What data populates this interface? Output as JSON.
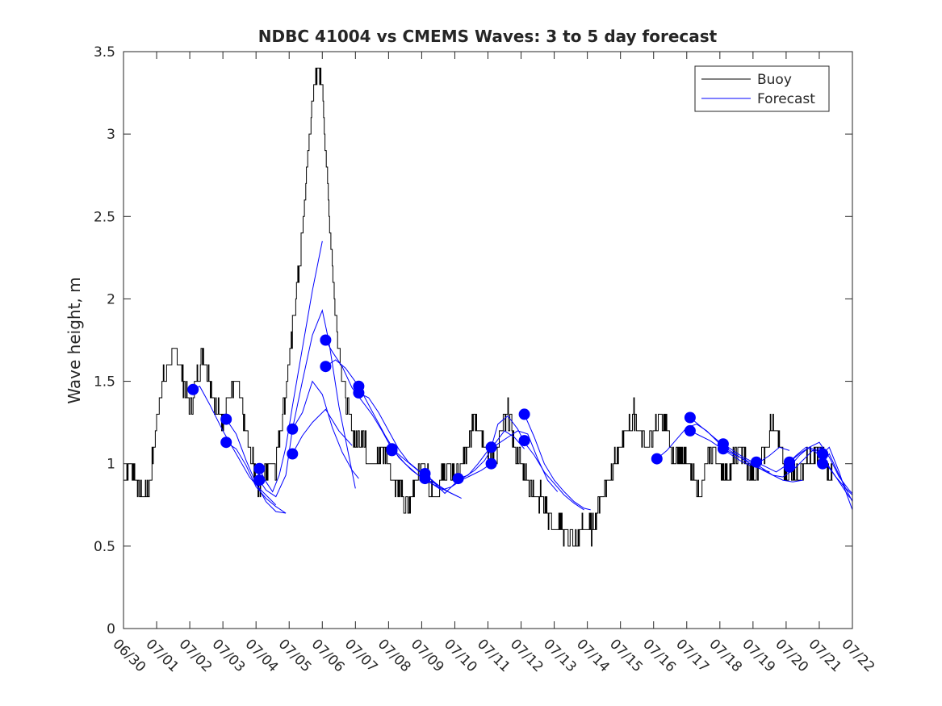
{
  "chart_data": {
    "type": "line",
    "title": "NDBC 41004 vs CMEMS Waves: 3 to 5 day forecast",
    "xlabel": "",
    "ylabel": "Wave height, m",
    "xlim": [
      "06/30",
      "07/22"
    ],
    "ylim": [
      0,
      3.5
    ],
    "x_ticks": [
      "06/30",
      "07/01",
      "07/02",
      "07/03",
      "07/04",
      "07/05",
      "07/06",
      "07/07",
      "07/08",
      "07/09",
      "07/10",
      "07/11",
      "07/12",
      "07/13",
      "07/14",
      "07/15",
      "07/16",
      "07/17",
      "07/18",
      "07/19",
      "07/20",
      "07/21",
      "07/22"
    ],
    "y_ticks": [
      "0",
      "0.5",
      "1",
      "1.5",
      "2",
      "2.5",
      "3",
      "3.5"
    ],
    "legend": {
      "position": "top-right",
      "entries": [
        "Buoy",
        "Forecast"
      ]
    },
    "colors": {
      "buoy": "#000000",
      "forecast": "#0000ff",
      "axis": "#262626"
    },
    "grid": false,
    "series": [
      {
        "name": "Buoy",
        "color": "#000000",
        "x": [
          0.0,
          0.2,
          0.4,
          0.6,
          0.8,
          1.0,
          1.2,
          1.4,
          1.6,
          1.8,
          2.0,
          2.2,
          2.4,
          2.6,
          2.8,
          3.0,
          3.2,
          3.4,
          3.6,
          3.8,
          4.0,
          4.2,
          4.4,
          4.6,
          4.8,
          5.0,
          5.2,
          5.4,
          5.6,
          5.8,
          6.0,
          6.2,
          6.4,
          6.6,
          6.8,
          7.0,
          7.2,
          7.4,
          7.6,
          7.8,
          8.0,
          8.2,
          8.4,
          8.6,
          8.8,
          9.0,
          9.2,
          9.4,
          9.6,
          9.8,
          10.0,
          10.2,
          10.4,
          10.6,
          10.8,
          11.0,
          11.2,
          11.4,
          11.6,
          11.8,
          12.0,
          12.2,
          12.4,
          12.6,
          12.8,
          13.0,
          13.2,
          13.4,
          13.6,
          13.8,
          14.0,
          14.2,
          14.4,
          14.6,
          14.8,
          15.0,
          15.2,
          15.4,
          15.6,
          15.8,
          16.0,
          16.2,
          16.4,
          16.6,
          16.8,
          17.0,
          17.2,
          17.4,
          17.6,
          17.8,
          18.0,
          18.2,
          18.4,
          18.6,
          18.8,
          19.0,
          19.2,
          19.4,
          19.6,
          19.8,
          20.0,
          20.2,
          20.4,
          20.6,
          20.8,
          21.0,
          21.2,
          21.4
        ],
        "values": [
          0.9,
          1.0,
          0.9,
          0.8,
          0.9,
          1.3,
          1.5,
          1.6,
          1.7,
          1.5,
          1.3,
          1.5,
          1.7,
          1.5,
          1.3,
          1.3,
          1.4,
          1.5,
          1.3,
          1.1,
          0.9,
          0.9,
          1.0,
          1.0,
          1.3,
          1.6,
          2.0,
          2.4,
          3.0,
          3.4,
          3.3,
          2.5,
          1.9,
          1.5,
          1.3,
          1.1,
          1.2,
          1.0,
          1.0,
          1.1,
          1.0,
          0.9,
          0.8,
          0.7,
          0.9,
          1.0,
          0.9,
          0.8,
          0.9,
          1.0,
          0.9,
          1.0,
          1.1,
          1.3,
          1.2,
          1.1,
          1.0,
          1.2,
          1.3,
          1.1,
          1.0,
          0.9,
          0.8,
          0.8,
          0.7,
          0.6,
          0.6,
          0.6,
          0.5,
          0.6,
          0.6,
          0.6,
          0.8,
          0.9,
          1.0,
          1.1,
          1.2,
          1.3,
          1.2,
          1.1,
          1.2,
          1.3,
          1.2,
          1.0,
          1.1,
          1.0,
          0.9,
          0.8,
          1.0,
          1.1,
          1.0,
          0.9,
          1.0,
          1.1,
          1.0,
          0.9,
          1.0,
          1.1,
          1.3,
          1.1,
          0.9,
          1.0,
          0.9,
          1.0,
          1.0,
          1.1,
          1.0,
          0.9
        ]
      },
      {
        "name": "Forecast",
        "color": "#0000ff",
        "lines": [
          {
            "x": [
              2.1,
              2.3,
              2.6,
              3.0,
              3.4,
              3.8,
              4.1,
              4.4,
              4.6
            ],
            "values": [
              1.45,
              1.47,
              1.36,
              1.2,
              1.06,
              0.92,
              0.85,
              0.79,
              0.75
            ]
          },
          {
            "x": [
              3.1,
              3.4,
              3.7,
              4.0,
              4.3,
              4.6,
              4.9
            ],
            "values": [
              1.27,
              1.18,
              1.02,
              0.88,
              0.77,
              0.71,
              0.7
            ]
          },
          {
            "x": [
              3.1,
              3.4,
              3.7,
              4.0,
              4.3,
              4.6,
              4.9
            ],
            "values": [
              1.13,
              1.09,
              0.99,
              0.86,
              0.79,
              0.74,
              0.7
            ]
          },
          {
            "x": [
              4.1,
              4.3,
              4.5,
              4.7,
              4.9,
              5.1,
              5.4,
              5.7,
              6.0
            ],
            "values": [
              0.97,
              0.89,
              0.83,
              0.93,
              1.1,
              1.35,
              1.7,
              2.05,
              2.35
            ]
          },
          {
            "x": [
              4.1,
              4.3,
              4.6,
              4.9,
              5.1,
              5.4,
              5.7,
              6.0,
              6.2,
              6.5,
              6.8,
              7.0
            ],
            "values": [
              0.9,
              0.84,
              0.8,
              0.93,
              1.21,
              1.5,
              1.78,
              1.93,
              1.74,
              1.35,
              1.05,
              0.85
            ]
          },
          {
            "x": [
              5.1,
              5.4,
              5.7,
              6.0,
              6.3,
              6.6,
              6.9,
              7.1
            ],
            "values": [
              1.21,
              1.31,
              1.5,
              1.42,
              1.22,
              1.07,
              0.96,
              0.91
            ]
          },
          {
            "x": [
              5.1,
              5.4,
              5.7,
              6.1,
              6.5,
              6.9
            ],
            "values": [
              1.06,
              1.17,
              1.25,
              1.33,
              1.2,
              1.11
            ]
          },
          {
            "x": [
              6.1,
              6.3,
              6.6,
              6.9,
              7.2,
              7.5,
              7.8,
              8.1,
              8.5,
              8.9,
              9.2,
              9.5,
              9.8
            ],
            "values": [
              1.75,
              1.68,
              1.59,
              1.46,
              1.38,
              1.3,
              1.2,
              1.09,
              1.0,
              0.93,
              0.9,
              0.87,
              0.83
            ]
          },
          {
            "x": [
              6.1,
              6.4,
              6.7,
              7.1,
              7.5,
              7.9,
              8.3,
              8.7,
              9.1,
              9.5,
              9.9,
              10.2
            ],
            "values": [
              1.59,
              1.63,
              1.58,
              1.47,
              1.32,
              1.17,
              1.04,
              0.96,
              0.9,
              0.86,
              0.82,
              0.79
            ]
          },
          {
            "x": [
              7.1,
              7.4,
              7.7,
              8.0,
              8.3,
              8.6,
              8.9,
              9.2,
              9.5,
              9.8,
              10.1
            ],
            "values": [
              1.43,
              1.4,
              1.31,
              1.2,
              1.09,
              1.01,
              0.96,
              0.92,
              0.87,
              0.83,
              0.8
            ]
          },
          {
            "x": [
              8.1,
              8.4,
              8.7,
              9.0,
              9.3,
              9.6,
              9.9,
              10.2,
              10.5,
              10.8,
              11.1
            ],
            "values": [
              1.09,
              1.04,
              0.99,
              0.94,
              0.88,
              0.84,
              0.86,
              0.9,
              0.93,
              0.96,
              1.0
            ]
          },
          {
            "x": [
              9.1,
              9.4,
              9.7,
              10.0,
              10.3,
              10.6,
              10.9,
              11.2,
              11.5,
              11.8,
              12.1
            ],
            "values": [
              0.94,
              0.88,
              0.82,
              0.88,
              0.92,
              0.96,
              1.02,
              1.12,
              1.2,
              1.16,
              1.09
            ]
          },
          {
            "x": [
              10.1,
              10.4,
              10.7,
              11.0,
              11.3,
              11.6,
              11.9,
              12.2,
              12.5,
              12.8,
              13.1
            ],
            "values": [
              0.91,
              0.93,
              1.0,
              1.08,
              1.12,
              1.16,
              1.2,
              1.18,
              1.03,
              0.9,
              0.83
            ]
          },
          {
            "x": [
              11.1,
              11.3,
              11.6,
              11.9,
              12.1,
              12.4,
              12.7,
              13.0,
              13.3,
              13.6,
              13.9
            ],
            "values": [
              1.1,
              1.24,
              1.29,
              1.21,
              1.13,
              1.05,
              0.95,
              0.88,
              0.81,
              0.76,
              0.72
            ]
          },
          {
            "x": [
              12.1,
              12.4,
              12.7,
              13.0,
              13.3,
              13.6,
              13.9,
              14.1
            ],
            "values": [
              1.3,
              1.16,
              1.0,
              0.9,
              0.83,
              0.77,
              0.73,
              0.72
            ]
          },
          {
            "x": [
              16.1,
              16.4,
              16.7,
              17.0,
              17.3,
              17.6,
              17.9,
              18.2,
              18.5
            ],
            "values": [
              1.03,
              1.08,
              1.15,
              1.22,
              1.24,
              1.2,
              1.14,
              1.08,
              1.05
            ]
          },
          {
            "x": [
              17.1,
              17.4,
              17.7,
              18.0,
              18.3,
              18.6,
              18.9,
              19.2,
              19.5
            ],
            "values": [
              1.28,
              1.23,
              1.18,
              1.13,
              1.08,
              1.04,
              1.0,
              0.97,
              0.95
            ]
          },
          {
            "x": [
              17.1,
              17.4,
              17.7,
              18.0,
              18.3,
              18.6,
              18.9,
              19.2,
              19.5,
              19.8,
              20.1
            ],
            "values": [
              1.2,
              1.17,
              1.14,
              1.1,
              1.06,
              1.02,
              0.99,
              1.01,
              1.05,
              1.1,
              1.08
            ]
          },
          {
            "x": [
              18.1,
              18.4,
              18.7,
              19.0,
              19.3,
              19.6,
              19.9,
              20.2,
              20.5,
              20.8,
              21.1
            ],
            "values": [
              1.12,
              1.08,
              1.04,
              1.01,
              0.97,
              0.93,
              0.92,
              0.96,
              1.02,
              1.08,
              1.1
            ]
          },
          {
            "x": [
              18.1,
              18.4,
              18.7,
              19.0,
              19.3,
              19.6,
              19.9,
              20.2,
              20.5
            ],
            "values": [
              1.09,
              1.06,
              1.03,
              1.0,
              0.96,
              0.93,
              0.9,
              0.89,
              0.9
            ]
          },
          {
            "x": [
              19.1,
              19.4,
              19.7,
              20.0,
              20.3,
              20.6,
              20.9,
              21.2,
              21.5,
              21.8,
              22.0
            ],
            "values": [
              1.01,
              0.98,
              0.95,
              0.99,
              1.05,
              1.1,
              1.07,
              1.0,
              0.92,
              0.85,
              0.81
            ]
          },
          {
            "x": [
              20.1,
              20.4,
              20.7,
              21.0,
              21.3,
              21.6,
              21.9,
              22.0
            ],
            "values": [
              0.98,
              1.05,
              1.1,
              1.13,
              1.04,
              0.92,
              0.84,
              0.82
            ]
          },
          {
            "x": [
              20.1,
              20.4,
              20.7,
              21.0,
              21.3,
              21.6,
              21.9,
              22.0
            ],
            "values": [
              1.01,
              1.06,
              1.1,
              1.07,
              0.98,
              0.89,
              0.8,
              0.78
            ]
          },
          {
            "x": [
              21.1,
              21.3,
              21.6,
              21.8,
              22.0
            ],
            "values": [
              1.06,
              1.1,
              0.95,
              0.83,
              0.72
            ]
          },
          {
            "x": [
              21.1,
              21.3,
              21.6,
              21.8,
              22.0
            ],
            "values": [
              1.0,
              1.06,
              0.93,
              0.85,
              0.77
            ]
          }
        ],
        "markers": {
          "x": [
            2.1,
            3.1,
            3.1,
            4.1,
            4.1,
            5.1,
            5.1,
            6.1,
            6.1,
            7.1,
            7.1,
            8.1,
            8.1,
            9.1,
            9.1,
            10.1,
            11.1,
            11.1,
            12.1,
            12.1,
            16.1,
            17.1,
            17.1,
            18.1,
            18.1,
            19.1,
            20.1,
            20.1,
            21.1,
            21.1
          ],
          "values": [
            1.45,
            1.27,
            1.13,
            0.97,
            0.9,
            1.21,
            1.06,
            1.75,
            1.59,
            1.47,
            1.43,
            1.09,
            1.08,
            0.94,
            0.91,
            0.91,
            1.1,
            1.0,
            1.3,
            1.14,
            1.03,
            1.28,
            1.2,
            1.12,
            1.09,
            1.01,
            1.01,
            0.98,
            1.06,
            1.0
          ]
        }
      }
    ]
  }
}
